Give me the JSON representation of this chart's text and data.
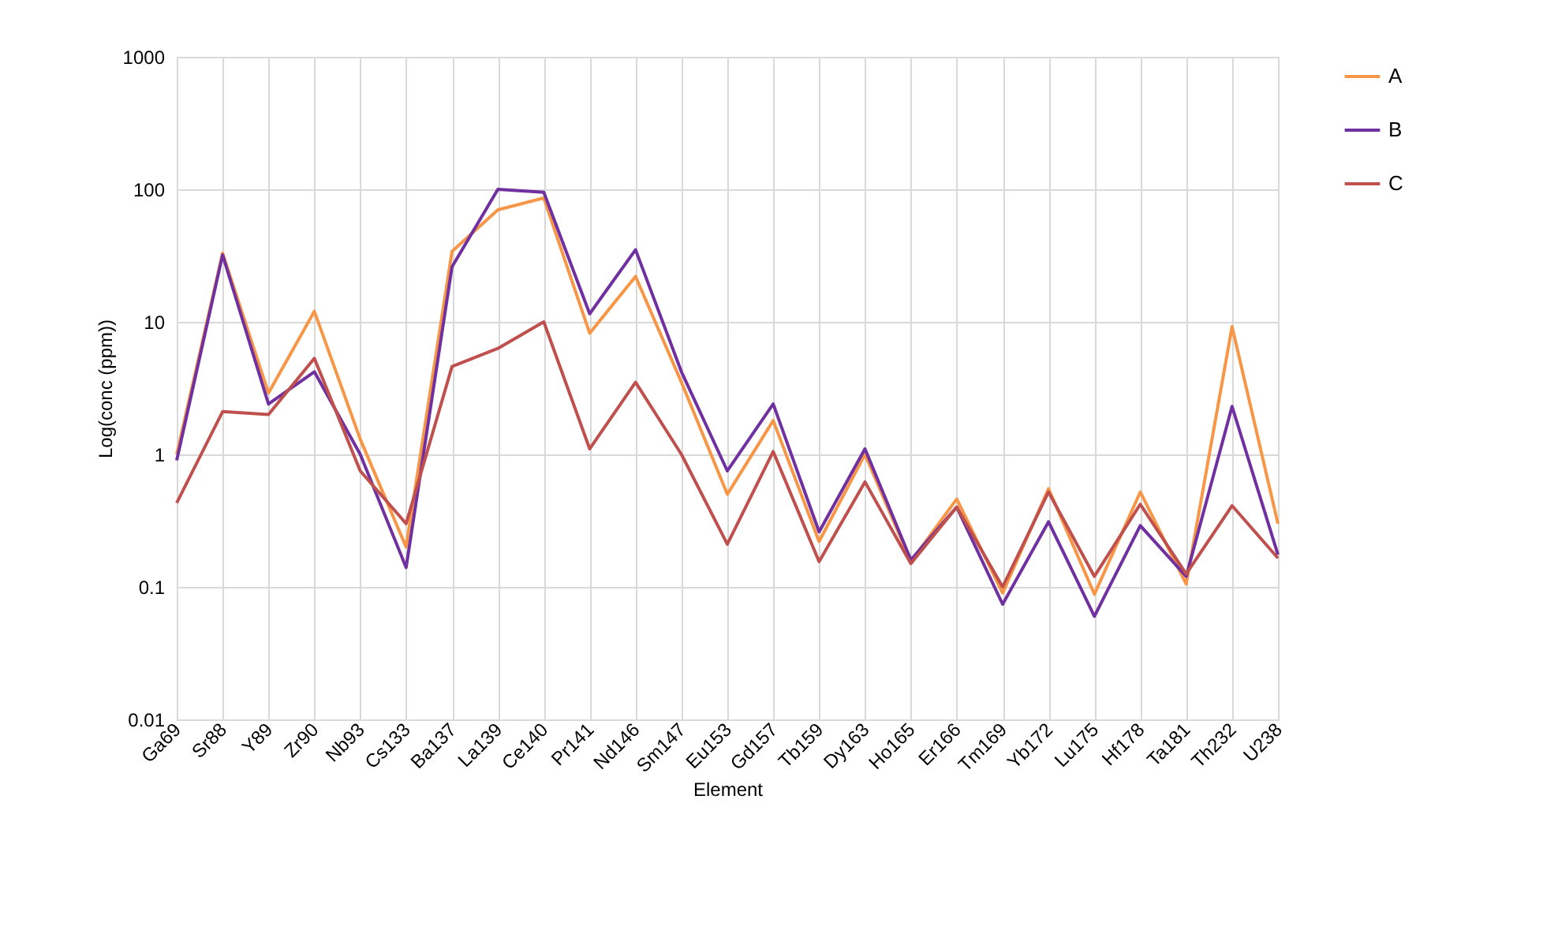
{
  "chart_data": {
    "type": "line",
    "xlabel": "Element",
    "ylabel": "Log(conc (ppm))",
    "categories": [
      "Ga69",
      "Sr88",
      "Y89",
      "Zr90",
      "Nb93",
      "Cs133",
      "Ba137",
      "La139",
      "Ce140",
      "Pr141",
      "Nd146",
      "Sm147",
      "Eu153",
      "Gd157",
      "Tb159",
      "Dy163",
      "Ho165",
      "Er166",
      "Tm169",
      "Yb172",
      "Lu175",
      "Hf178",
      "Ta181",
      "Th232",
      "U238"
    ],
    "series": [
      {
        "name": "A",
        "color": "#f79646",
        "values": [
          1.0,
          33,
          2.9,
          12,
          1.3,
          0.2,
          34,
          70,
          86,
          8.2,
          22,
          3.5,
          0.5,
          1.8,
          0.22,
          1.0,
          0.155,
          0.46,
          0.09,
          0.55,
          0.088,
          0.52,
          0.105,
          9.2,
          0.3
        ]
      },
      {
        "name": "B",
        "color": "#7030a0",
        "values": [
          0.9,
          32,
          2.4,
          4.2,
          1.0,
          0.14,
          26,
          100,
          95,
          11.5,
          35,
          4.2,
          0.75,
          2.4,
          0.26,
          1.1,
          0.16,
          0.4,
          0.074,
          0.31,
          0.06,
          0.29,
          0.12,
          2.3,
          0.175
        ]
      },
      {
        "name": "C",
        "color": "#c0504d",
        "values": [
          0.43,
          2.1,
          2.0,
          5.3,
          0.75,
          0.3,
          4.6,
          6.3,
          10,
          1.1,
          3.5,
          1.0,
          0.21,
          1.05,
          0.155,
          0.62,
          0.15,
          0.4,
          0.1,
          0.52,
          0.12,
          0.42,
          0.125,
          0.41,
          0.165
        ]
      }
    ],
    "log": "y",
    "ylim": [
      0.01,
      1000
    ],
    "yticks": [
      0.01,
      0.1,
      1,
      10,
      100,
      1000
    ],
    "grid": true,
    "legend": "right",
    "line_style": "solid",
    "marker": "none"
  }
}
